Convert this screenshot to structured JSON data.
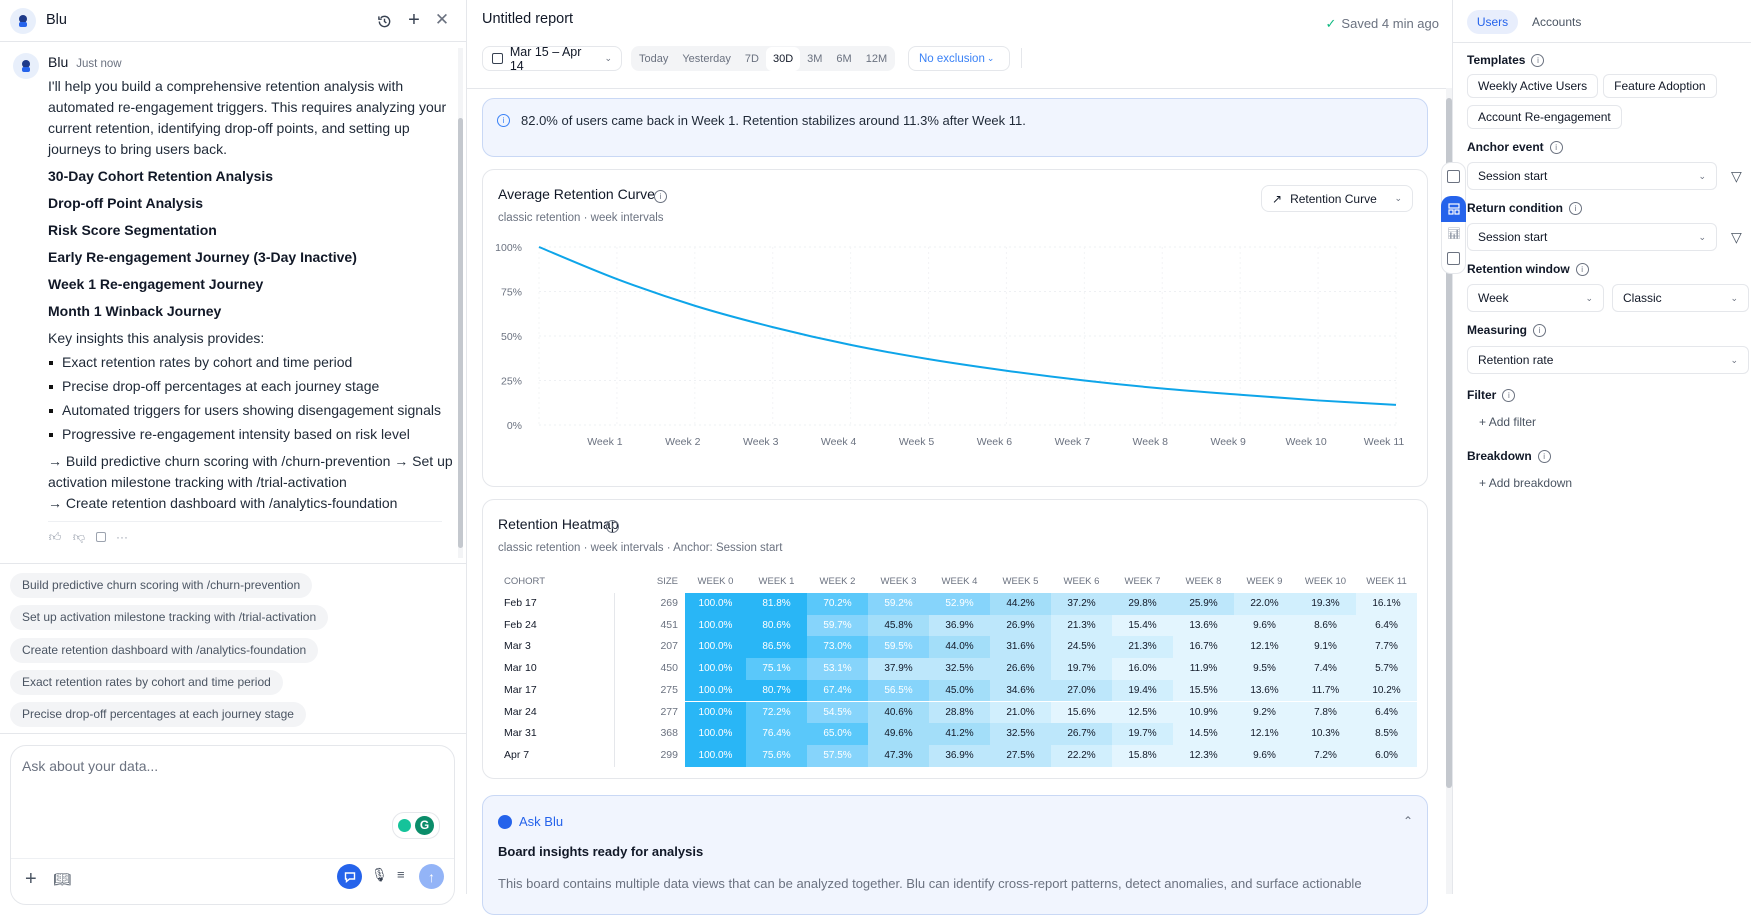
{
  "colors": {
    "accent": "#2563eb",
    "curve": "#0ea5e9",
    "heat_max": "#29b6f6"
  },
  "left": {
    "title": "Blu",
    "icons": [
      "history-icon",
      "plus-icon",
      "close-icon"
    ],
    "message": {
      "author": "Blu",
      "time": "Just now",
      "intro": "I'll help you build a comprehensive retention analysis with automated re-engagement triggers. This requires analyzing your current retention, identifying drop-off points, and setting up journeys to bring users back.",
      "headings": [
        "30-Day Cohort Retention Analysis",
        "Drop-off Point Analysis",
        "Risk Score Segmentation",
        "Early Re-engagement Journey (3-Day Inactive)",
        "Week 1 Re-engagement Journey",
        "Month 1 Winback Journey"
      ],
      "insights_label": "Key insights this analysis provides:",
      "bullets": [
        "Exact retention rates by cohort and time period",
        "Precise drop-off percentages at each journey stage",
        "Automated triggers for users showing disengagement signals",
        "Progressive re-engagement intensity based on risk level"
      ],
      "next_steps": "→ Build predictive churn scoring with /churn-prevention → Set up activation milestone tracking with /trial-activation",
      "next_steps_2": "→ Create retention dashboard with /analytics-foundation"
    },
    "suggestions": [
      "Build predictive churn scoring with /churn-prevention",
      "Set up activation milestone tracking with /trial-activation",
      "Create retention dashboard with /analytics-foundation",
      "Exact retention rates by cohort and time period",
      "Precise drop-off percentages at each journey stage"
    ],
    "input_placeholder": "Ask about your data..."
  },
  "header": {
    "title": "Untitled report",
    "saved": "Saved 4 min ago",
    "date_range": "Mar 15 – Apr 14",
    "presets": [
      "Today",
      "Yesterday",
      "7D",
      "30D",
      "3M",
      "6M",
      "12M"
    ],
    "active_preset": "30D",
    "exclusion": "No exclusion"
  },
  "insight": "82.0% of users came back in Week 1. Retention stabilizes around 11.3% after Week 11.",
  "chart_data": [
    {
      "type": "line",
      "title": "Average Retention Curve",
      "subtitle": "classic retention · week intervals",
      "view_select": "Retention Curve",
      "x": [
        "Week 0",
        "Week 1",
        "Week 2",
        "Week 3",
        "Week 4",
        "Week 5",
        "Week 6",
        "Week 7",
        "Week 8",
        "Week 9",
        "Week 10",
        "Week 11"
      ],
      "x_tick_labels": [
        "Week 1",
        "Week 2",
        "Week 3",
        "Week 4",
        "Week 5",
        "Week 6",
        "Week 7",
        "Week 8",
        "Week 9",
        "Week 10",
        "Week 11"
      ],
      "values": [
        100,
        82,
        67,
        55,
        45,
        37,
        30.5,
        25,
        20.5,
        17,
        13.8,
        11.3
      ],
      "y_ticks": [
        "100%",
        "75%",
        "50%",
        "25%",
        "0%"
      ],
      "ylim": [
        0,
        100
      ],
      "grid": true
    },
    {
      "type": "heatmap",
      "title": "Retention Heatmap",
      "subtitle": "classic retention · week intervals · Anchor: Session start",
      "columns": [
        "COHORT",
        "SIZE",
        "WEEK 0",
        "WEEK 1",
        "WEEK 2",
        "WEEK 3",
        "WEEK 4",
        "WEEK 5",
        "WEEK 6",
        "WEEK 7",
        "WEEK 8",
        "WEEK 9",
        "WEEK 10",
        "WEEK 11"
      ],
      "rows": [
        {
          "cohort": "Feb 17",
          "size": "269",
          "values": [
            100.0,
            81.8,
            70.2,
            59.2,
            52.9,
            44.2,
            37.2,
            29.8,
            25.9,
            22.0,
            19.3,
            16.1
          ]
        },
        {
          "cohort": "Feb 24",
          "size": "451",
          "values": [
            100.0,
            80.6,
            59.7,
            45.8,
            36.9,
            26.9,
            21.3,
            15.4,
            13.6,
            9.6,
            8.6,
            6.4
          ]
        },
        {
          "cohort": "Mar 3",
          "size": "207",
          "values": [
            100.0,
            86.5,
            73.0,
            59.5,
            44.0,
            31.6,
            24.5,
            21.3,
            16.7,
            12.1,
            9.1,
            7.7
          ]
        },
        {
          "cohort": "Mar 10",
          "size": "450",
          "values": [
            100.0,
            75.1,
            53.1,
            37.9,
            32.5,
            26.6,
            19.7,
            16.0,
            11.9,
            9.5,
            7.4,
            5.7
          ]
        },
        {
          "cohort": "Mar 17",
          "size": "275",
          "values": [
            100.0,
            80.7,
            67.4,
            56.5,
            45.0,
            34.6,
            27.0,
            19.4,
            15.5,
            13.6,
            11.7,
            10.2
          ]
        },
        {
          "cohort": "Mar 24",
          "size": "277",
          "values": [
            100.0,
            72.2,
            54.5,
            40.6,
            28.8,
            21.0,
            15.6,
            12.5,
            10.9,
            9.2,
            7.8,
            6.4
          ]
        },
        {
          "cohort": "Mar 31",
          "size": "368",
          "values": [
            100.0,
            76.4,
            65.0,
            49.6,
            41.2,
            32.5,
            26.7,
            19.7,
            14.5,
            12.1,
            10.3,
            8.5
          ]
        },
        {
          "cohort": "Apr 7",
          "size": "299",
          "values": [
            100.0,
            75.6,
            57.5,
            47.3,
            36.9,
            27.5,
            22.2,
            15.8,
            12.3,
            9.6,
            7.2,
            6.0
          ]
        }
      ]
    }
  ],
  "ask_blu": {
    "label": "Ask Blu",
    "heading": "Board insights ready for analysis",
    "body": "This board contains multiple data views that can be analyzed together. Blu can identify cross-report patterns, detect anomalies, and surface actionable"
  },
  "right": {
    "tabs": [
      "Users",
      "Accounts"
    ],
    "active_tab": "Users",
    "templates_label": "Templates",
    "templates": [
      "Weekly Active Users",
      "Feature Adoption",
      "Account Re-engagement"
    ],
    "anchor_label": "Anchor event",
    "anchor_value": "Session start",
    "return_label": "Return condition",
    "return_value": "Session start",
    "window_label": "Retention window",
    "window_unit": "Week",
    "window_mode": "Classic",
    "measuring_label": "Measuring",
    "measuring_value": "Retention rate",
    "filter_label": "Filter",
    "add_filter": "Add filter",
    "breakdown_label": "Breakdown",
    "add_breakdown": "Add breakdown"
  }
}
